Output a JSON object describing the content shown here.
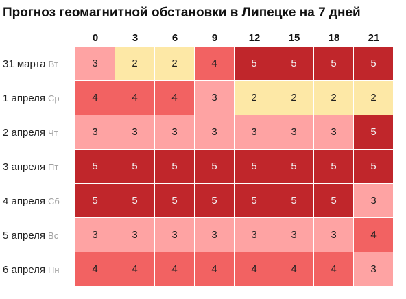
{
  "chart_data": {
    "type": "heatmap",
    "title": "Прогноз геомагнитной обстановки в Липецке на 7 дней",
    "x": [
      "0",
      "3",
      "6",
      "9",
      "12",
      "15",
      "18",
      "21"
    ],
    "rows": [
      {
        "date": "31 марта",
        "dow": "Вт",
        "values": [
          3,
          2,
          2,
          4,
          5,
          5,
          5,
          5
        ]
      },
      {
        "date": "1 апреля",
        "dow": "Ср",
        "values": [
          4,
          4,
          4,
          3,
          2,
          2,
          2,
          2
        ]
      },
      {
        "date": "2 апреля",
        "dow": "Чт",
        "values": [
          3,
          3,
          3,
          3,
          3,
          3,
          3,
          5
        ]
      },
      {
        "date": "3 апреля",
        "dow": "Пт",
        "values": [
          5,
          5,
          5,
          5,
          5,
          5,
          5,
          5
        ]
      },
      {
        "date": "4 апреля",
        "dow": "Сб",
        "values": [
          5,
          5,
          5,
          5,
          5,
          5,
          5,
          3
        ]
      },
      {
        "date": "5 апреля",
        "dow": "Вс",
        "values": [
          3,
          3,
          3,
          3,
          3,
          3,
          3,
          4
        ]
      },
      {
        "date": "6 апреля",
        "dow": "Пн",
        "values": [
          4,
          4,
          4,
          4,
          4,
          4,
          4,
          3
        ]
      }
    ],
    "color_scale": {
      "2": "#fde8a6",
      "3": "#fea3a3",
      "4": "#f26262",
      "5": "#c0262b"
    }
  }
}
